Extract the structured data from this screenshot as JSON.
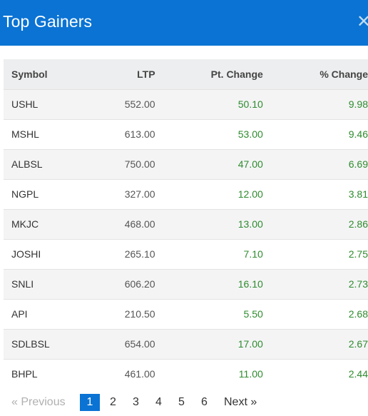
{
  "header": {
    "title": "Top Gainers",
    "close_symbol": "✕"
  },
  "table": {
    "columns": [
      "Symbol",
      "LTP",
      "Pt. Change",
      "% Change"
    ],
    "rows": [
      {
        "symbol": "USHL",
        "ltp": "552.00",
        "pt_change": "50.10",
        "pct_change": "9.98"
      },
      {
        "symbol": "MSHL",
        "ltp": "613.00",
        "pt_change": "53.00",
        "pct_change": "9.46"
      },
      {
        "symbol": "ALBSL",
        "ltp": "750.00",
        "pt_change": "47.00",
        "pct_change": "6.69"
      },
      {
        "symbol": "NGPL",
        "ltp": "327.00",
        "pt_change": "12.00",
        "pct_change": "3.81"
      },
      {
        "symbol": "MKJC",
        "ltp": "468.00",
        "pt_change": "13.00",
        "pct_change": "2.86"
      },
      {
        "symbol": "JOSHI",
        "ltp": "265.10",
        "pt_change": "7.10",
        "pct_change": "2.75"
      },
      {
        "symbol": "SNLI",
        "ltp": "606.20",
        "pt_change": "16.10",
        "pct_change": "2.73"
      },
      {
        "symbol": "API",
        "ltp": "210.50",
        "pt_change": "5.50",
        "pct_change": "2.68"
      },
      {
        "symbol": "SDLBSL",
        "ltp": "654.00",
        "pt_change": "17.00",
        "pct_change": "2.67"
      },
      {
        "symbol": "BHPL",
        "ltp": "461.00",
        "pt_change": "11.00",
        "pct_change": "2.44"
      }
    ]
  },
  "pagination": {
    "previous_label": "« Previous",
    "pages": [
      "1",
      "2",
      "3",
      "4",
      "5",
      "6"
    ],
    "active_page": "1",
    "next_label": "Next »"
  },
  "colors": {
    "header_bg": "#0a73d4",
    "positive": "#2e8b2e",
    "active_page_bg": "#0a73d4"
  }
}
